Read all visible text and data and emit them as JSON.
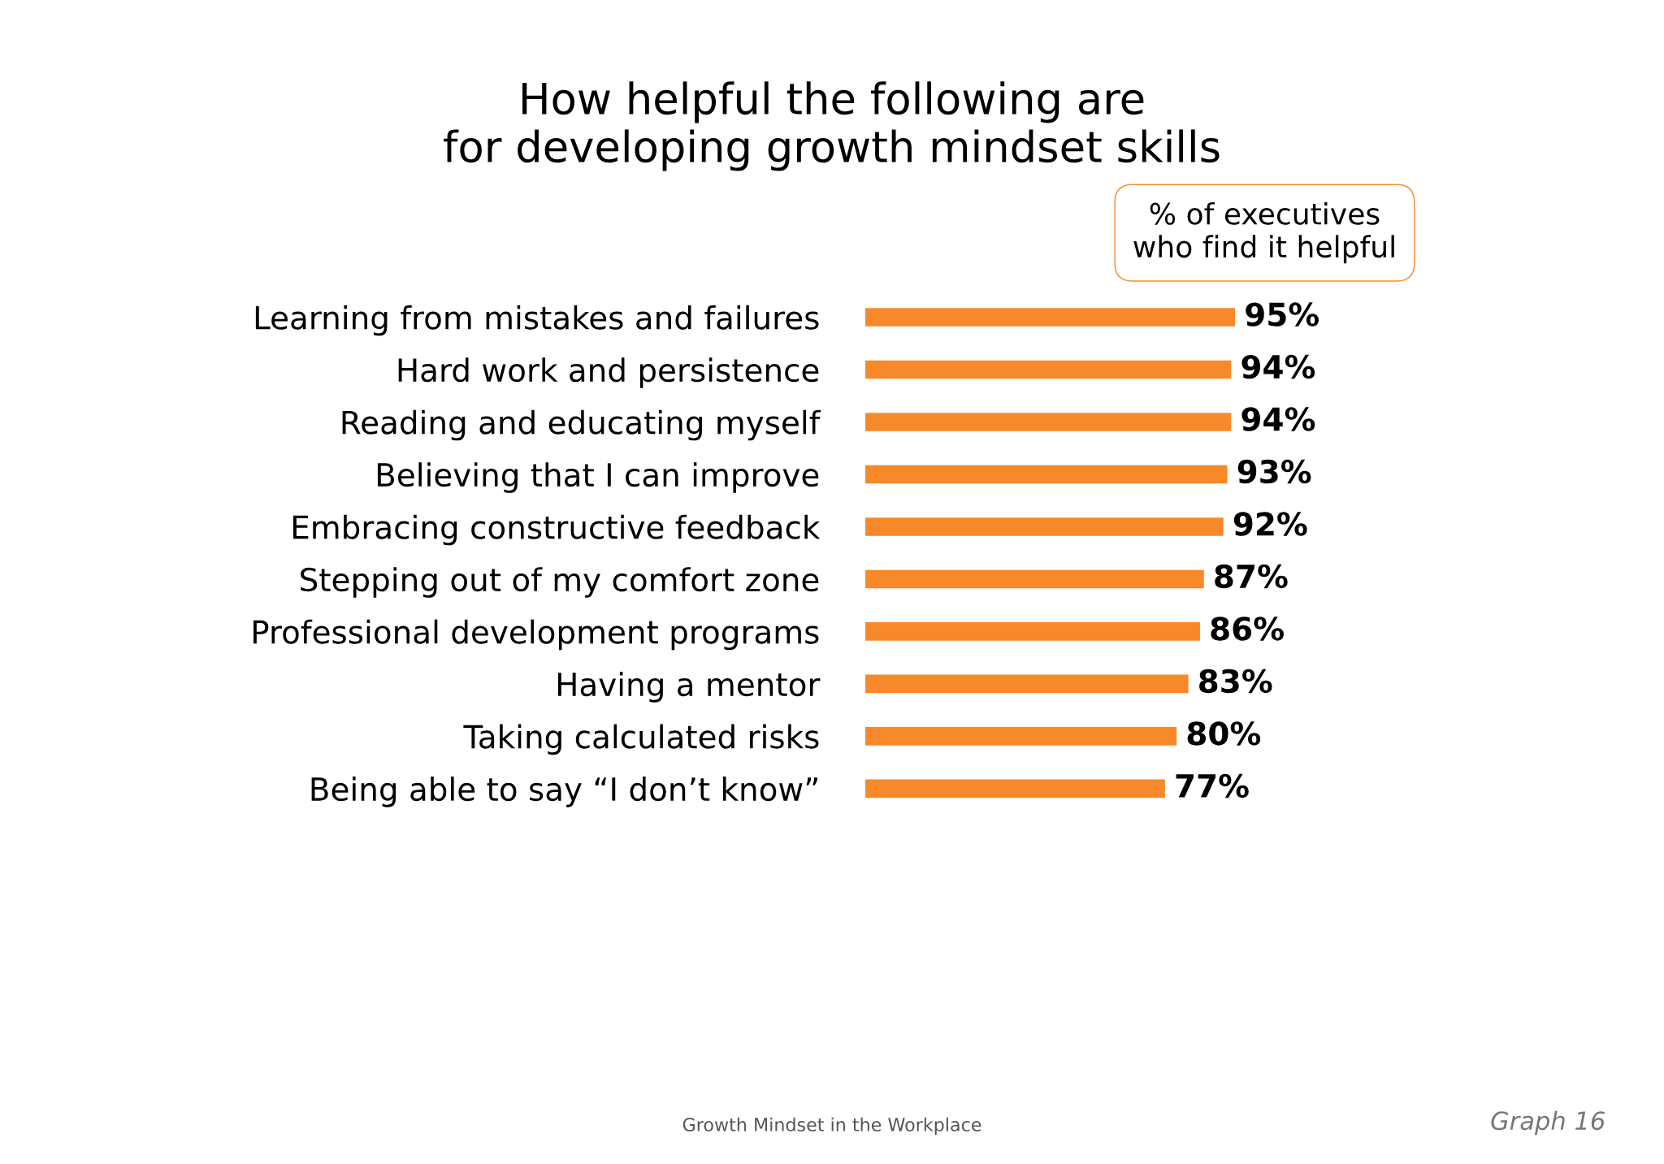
{
  "chart_data": {
    "type": "bar",
    "orientation": "horizontal",
    "title": "How helpful the following are\nfor developing growth mindset skills",
    "categories": [
      "Learning from mistakes and failures",
      "Hard work and persistence",
      "Reading and educating myself",
      "Believing that I can improve",
      "Embracing constructive feedback",
      "Stepping out of my comfort zone",
      "Professional development programs",
      "Having a mentor",
      "Taking calculated risks",
      "Being able to say “I don’t know”"
    ],
    "values": [
      95,
      94,
      94,
      93,
      92,
      87,
      86,
      83,
      80,
      77
    ],
    "color": "#f7892a",
    "value_labels": [
      "95%",
      "94%",
      "94%",
      "93%",
      "92%",
      "87%",
      "86%",
      "83%",
      "80%",
      "77%"
    ],
    "annotations": [
      "% of executives\nwho find it helpful",
      "Growth Mindset in the Workplace",
      "Graph 16"
    ]
  }
}
